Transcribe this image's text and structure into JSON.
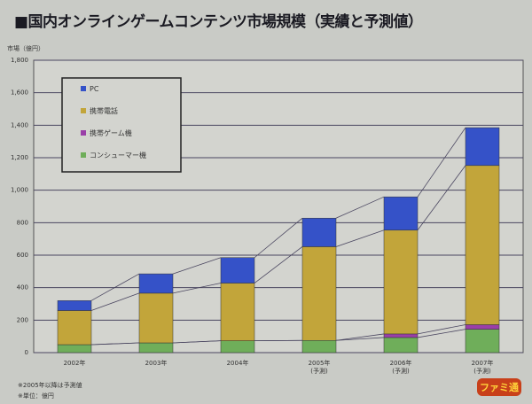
{
  "title": "■国内オンラインゲームコンテンツ市場規模（実績と予測値）",
  "notes": [
    "※2005年以降は予測値",
    "※単位：億円"
  ],
  "logo": "ファミ通",
  "chart_data": {
    "type": "bar",
    "stacked": true,
    "title": "■国内オンラインゲームコンテンツ市場規模（実績と予測値）",
    "ylabel": "市場（億円）",
    "ylim": [
      0,
      1800
    ],
    "yticks": [
      0,
      200,
      400,
      600,
      800,
      1000,
      1200,
      1400,
      1600,
      1800
    ],
    "ytick_labels": [
      "0",
      "200",
      "400",
      "600",
      "800",
      "1,000",
      "1,200",
      "1,400",
      "1,600",
      "1,800"
    ],
    "categories": [
      "2002年",
      "2003年",
      "2004年",
      "2005年\n(予測)",
      "2006年\n(予測)",
      "2007年\n(予測)"
    ],
    "grid": true,
    "legend_placement": "top-left",
    "series": [
      {
        "name": "コンシューマー機",
        "color": "#6fae5a",
        "values": [
          49,
          60,
          73,
          75,
          93,
          144
        ]
      },
      {
        "name": "携帯ゲーム機",
        "color": "#9a3fa8",
        "values": [
          0,
          0,
          0,
          0,
          22,
          28
        ]
      },
      {
        "name": "携帯電話",
        "color": "#c2a53a",
        "values": [
          210,
          306,
          355,
          577,
          639,
          980
        ]
      },
      {
        "name": "PC",
        "color": "#3552c8",
        "values": [
          61,
          119,
          157,
          176,
          205,
          233
        ]
      }
    ],
    "legend_order": [
      "PC",
      "携帯電話",
      "携帯ゲーム機",
      "コンシューマー機"
    ]
  }
}
